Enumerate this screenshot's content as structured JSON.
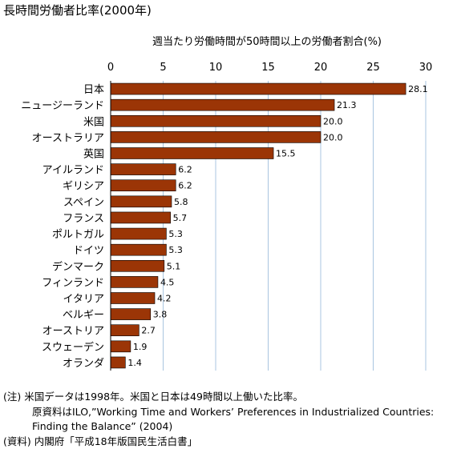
{
  "chart_data": {
    "type": "bar",
    "orientation": "horizontal",
    "title": "長時間労働者比率(2000年)",
    "xlabel": "週当たり労働時間が50時間以上の労働者割合(%)",
    "ylabel": "",
    "xlim": [
      0,
      30
    ],
    "xticks": [
      "0",
      "5",
      "10",
      "15",
      "20",
      "25",
      "30"
    ],
    "grid": true,
    "legend": "none",
    "bar_color": "#9b3506",
    "grid_color": "#a9c5e0",
    "categories": [
      "日本",
      "ニュージーランド",
      "米国",
      "オーストラリア",
      "英国",
      "アイルランド",
      "ギリシア",
      "スペイン",
      "フランス",
      "ポルトガル",
      "ドイツ",
      "デンマーク",
      "フィンランド",
      "イタリア",
      "ベルギー",
      "オーストリア",
      "スウェーデン",
      "オランダ"
    ],
    "values": [
      28.1,
      21.3,
      20.0,
      20.0,
      15.5,
      6.2,
      6.2,
      5.8,
      5.7,
      5.3,
      5.3,
      5.1,
      4.5,
      4.2,
      3.8,
      2.7,
      1.9,
      1.4
    ],
    "value_labels": [
      "28.1",
      "21.3",
      "20.0",
      "20.0",
      "15.5",
      "6.2",
      "6.2",
      "5.8",
      "5.7",
      "5.3",
      "5.3",
      "5.1",
      "4.5",
      "4.2",
      "3.8",
      "2.7",
      "1.9",
      "1.4"
    ]
  },
  "notes": {
    "line1": "(注) 米国データは1998年。米国と日本は49時間以上働いた比率。",
    "line2": "原資料はILO,”Working Time and Workers’ Preferences in Industrialized Countries:",
    "line3": "Finding the Balance” (2004)",
    "line4": "(資料) 内閣府「平成18年版国民生活白書」"
  }
}
